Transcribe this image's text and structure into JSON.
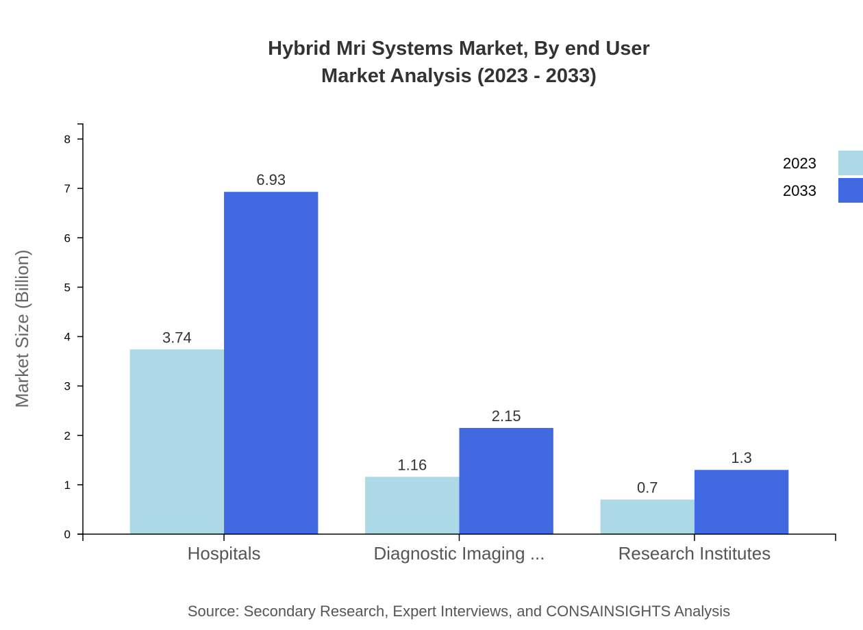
{
  "chart_data": {
    "type": "bar",
    "title": [
      "Hybrid Mri Systems Market, By end User",
      "Market Analysis (2023 - 2033)"
    ],
    "ylabel": "Market Size (Billion)",
    "xlabel": "",
    "categories": [
      "Hospitals",
      "Diagnostic Imaging ...",
      "Research Institutes"
    ],
    "series": [
      {
        "name": "2023",
        "color": "#add8e6",
        "values": [
          3.74,
          1.16,
          0.7
        ]
      },
      {
        "name": "2033",
        "color": "#4169e1",
        "values": [
          6.93,
          2.15,
          1.3
        ]
      }
    ],
    "ylim": [
      0,
      8
    ],
    "yticks": [
      0,
      1,
      2,
      3,
      4,
      5,
      6,
      7,
      8
    ],
    "grid": false,
    "legend": "top-right",
    "source": "Source: Secondary Research, Expert Interviews, and CONSAINSIGHTS Analysis"
  }
}
